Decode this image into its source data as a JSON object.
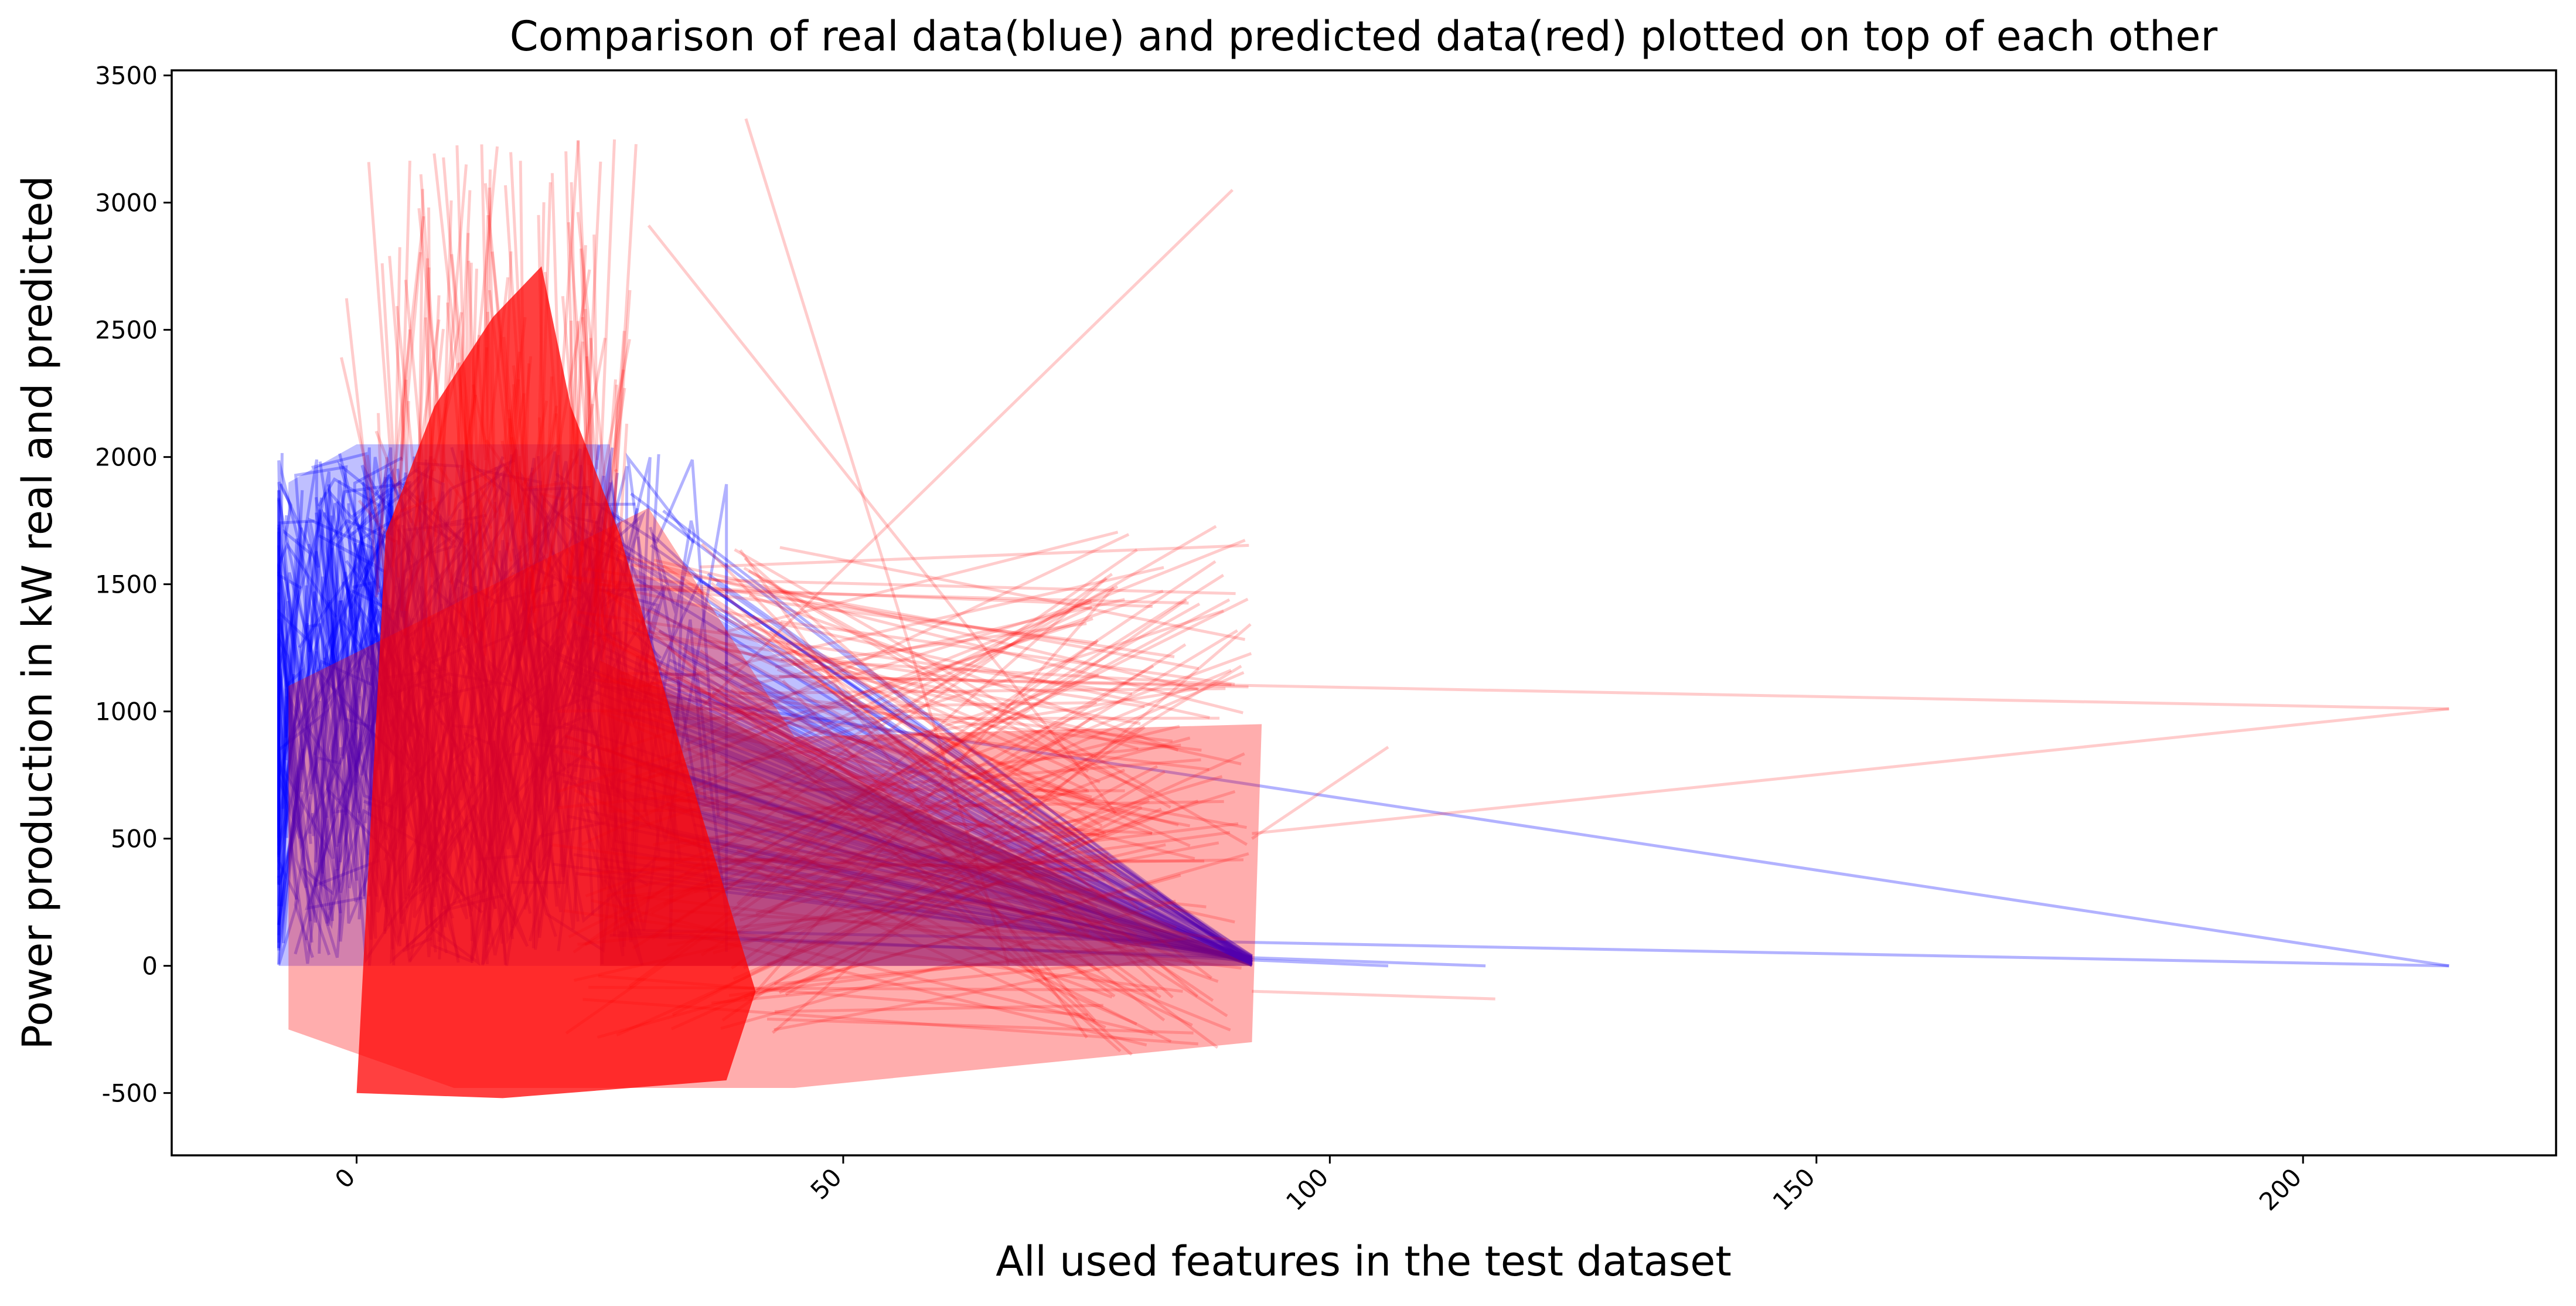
{
  "chart_data": {
    "type": "line",
    "title": "Comparison of real data(blue) and predicted data(red) plotted on top of each other",
    "xlabel": "All used features in the test dataset",
    "ylabel": "Power production in kW real and predicted",
    "xlim": [
      -19,
      226
    ],
    "ylim": [
      -745,
      3520
    ],
    "xticks": [
      0,
      50,
      100,
      150,
      200
    ],
    "yticks": [
      -500,
      0,
      500,
      1000,
      1500,
      2000,
      2500,
      3000,
      3500
    ],
    "xtick_rotation": 45,
    "grid": false,
    "legend": "none",
    "series": [
      {
        "color": "#0000ff",
        "alpha": 0.3,
        "description_bounds": {
          "x": [
            -8,
            215
          ],
          "y": [
            0,
            2060
          ]
        },
        "outliers": [
          {
            "x": [
              25,
              215
            ],
            "y": [
              1100,
              0
            ]
          },
          {
            "x": [
              26,
              116
            ],
            "y": [
              120,
              0
            ]
          },
          {
            "x": [
              27,
              106
            ],
            "y": [
              130,
              0
            ]
          },
          {
            "x": [
              28,
              215
            ],
            "y": [
              140,
              0
            ]
          }
        ]
      },
      {
        "color": "#ff0000",
        "alpha": 0.2,
        "description_bounds": {
          "x": [
            -8,
            215
          ],
          "y": [
            -540,
            3330
          ]
        },
        "outliers": [
          {
            "x": [
              27,
              215
            ],
            "y": [
              1150,
              1010
            ]
          },
          {
            "x": [
              215,
              92
            ],
            "y": [
              1010,
              520
            ]
          },
          {
            "x": [
              40,
              67
            ],
            "y": [
              3330,
              0
            ]
          },
          {
            "x": [
              35,
              90
            ],
            "y": [
              1000,
              3050
            ]
          },
          {
            "x": [
              92,
              106
            ],
            "y": [
              500,
              860
            ]
          },
          {
            "x": [
              92,
              117
            ],
            "y": [
              -100,
              -130
            ]
          },
          {
            "x": [
              30,
              78
            ],
            "y": [
              2910,
              600
            ]
          }
        ]
      }
    ]
  }
}
